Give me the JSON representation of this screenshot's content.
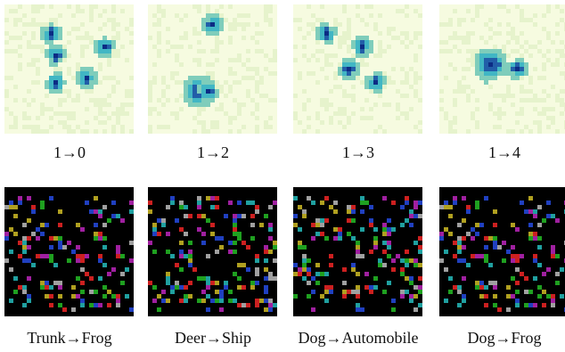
{
  "row_top": {
    "colors": {
      "background": "#f6fbe0",
      "light": "#e6f3cc",
      "mid": "#7fcdbb",
      "strong": "#41b6c4",
      "dark": "#225ea8",
      "darkest": "#0c2c84"
    },
    "panels": [
      {
        "caption": "1→0"
      },
      {
        "caption": "1→2"
      },
      {
        "caption": "1→3"
      },
      {
        "caption": "1→4"
      }
    ]
  },
  "row_bottom": {
    "colors": {
      "background": "#000000",
      "palette": [
        "#cc2020",
        "#1fa020",
        "#2040c0",
        "#20a0a0",
        "#b0a020",
        "#a020a0",
        "#a0a0a0"
      ]
    },
    "panels": [
      {
        "caption": "Trunk→Frog"
      },
      {
        "caption": "Deer→Ship"
      },
      {
        "caption": "Dog→Automobile"
      },
      {
        "caption": "Dog→Frog"
      }
    ]
  }
}
